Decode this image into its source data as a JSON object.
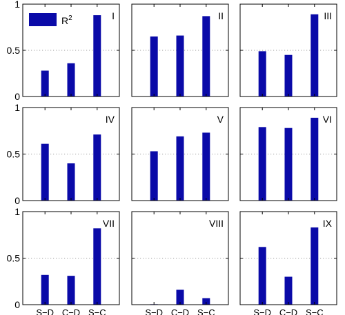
{
  "chart_data": [
    {
      "type": "bar",
      "panel_label": "I",
      "categories": [
        "S−D",
        "C−D",
        "S−C"
      ],
      "values": [
        0.28,
        0.36,
        0.88
      ],
      "ylim": [
        0,
        1
      ],
      "yticks": [
        "0",
        "0.5",
        "1"
      ],
      "show_xticks": false,
      "show_yticks": true,
      "legend": {
        "entries": [
          {
            "name": "R²",
            "base": "R",
            "sup": "2"
          }
        ],
        "position": "top-left"
      }
    },
    {
      "type": "bar",
      "panel_label": "II",
      "categories": [
        "S−D",
        "C−D",
        "S−C"
      ],
      "values": [
        0.65,
        0.66,
        0.87
      ],
      "ylim": [
        0,
        1
      ],
      "yticks": [
        "0",
        "0.5",
        "1"
      ],
      "show_xticks": false,
      "show_yticks": false
    },
    {
      "type": "bar",
      "panel_label": "III",
      "categories": [
        "S−D",
        "C−D",
        "S−C"
      ],
      "values": [
        0.49,
        0.45,
        0.89
      ],
      "ylim": [
        0,
        1
      ],
      "yticks": [
        "0",
        "0.5",
        "1"
      ],
      "show_xticks": false,
      "show_yticks": false
    },
    {
      "type": "bar",
      "panel_label": "IV",
      "categories": [
        "S−D",
        "C−D",
        "S−C"
      ],
      "values": [
        0.61,
        0.4,
        0.71
      ],
      "ylim": [
        0,
        1
      ],
      "yticks": [
        "0",
        "0.5",
        "1"
      ],
      "show_xticks": false,
      "show_yticks": true
    },
    {
      "type": "bar",
      "panel_label": "V",
      "categories": [
        "S−D",
        "C−D",
        "S−C"
      ],
      "values": [
        0.53,
        0.69,
        0.73
      ],
      "ylim": [
        0,
        1
      ],
      "yticks": [
        "0",
        "0.5",
        "1"
      ],
      "show_xticks": false,
      "show_yticks": false
    },
    {
      "type": "bar",
      "panel_label": "VI",
      "categories": [
        "S−D",
        "C−D",
        "S−C"
      ],
      "values": [
        0.79,
        0.78,
        0.89
      ],
      "ylim": [
        0,
        1
      ],
      "yticks": [
        "0",
        "0.5",
        "1"
      ],
      "show_xticks": false,
      "show_yticks": false
    },
    {
      "type": "bar",
      "panel_label": "VII",
      "categories": [
        "S−D",
        "C−D",
        "S−C"
      ],
      "values": [
        0.32,
        0.31,
        0.82
      ],
      "ylim": [
        0,
        1
      ],
      "yticks": [
        "0",
        "0.5",
        "1"
      ],
      "show_xticks": true,
      "show_yticks": true
    },
    {
      "type": "bar",
      "panel_label": "VIII",
      "categories": [
        "S−D",
        "C−D",
        "S−C"
      ],
      "values": [
        0.005,
        0.16,
        0.07
      ],
      "ylim": [
        0,
        1
      ],
      "yticks": [
        "0",
        "0.5",
        "1"
      ],
      "show_xticks": true,
      "show_yticks": false
    },
    {
      "type": "bar",
      "panel_label": "IX",
      "categories": [
        "S−D",
        "C−D",
        "S−C"
      ],
      "values": [
        0.62,
        0.3,
        0.83
      ],
      "ylim": [
        0,
        1
      ],
      "yticks": [
        "0",
        "0.5",
        "1"
      ],
      "show_xticks": true,
      "show_yticks": false
    }
  ],
  "style": {
    "bar_color": "#0a0aa8",
    "axis_color": "#000000",
    "grid_color": "#9a9a9a",
    "grid": "dotted line at 0.5"
  }
}
